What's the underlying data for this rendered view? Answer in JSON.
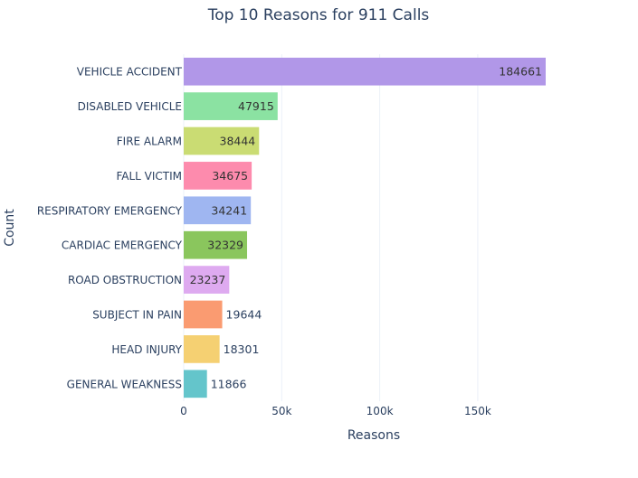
{
  "chart_data": {
    "type": "bar",
    "orientation": "horizontal",
    "title": "Top 10 Reasons for 911 Calls",
    "xlabel": "Reasons",
    "ylabel": "Count",
    "categories": [
      "VEHICLE ACCIDENT",
      "DISABLED VEHICLE",
      "FIRE ALARM",
      "FALL VICTIM",
      "RESPIRATORY EMERGENCY",
      "CARDIAC EMERGENCY",
      "ROAD OBSTRUCTION",
      "SUBJECT IN PAIN",
      "HEAD INJURY",
      "GENERAL WEAKNESS"
    ],
    "values": [
      184661,
      47915,
      38444,
      34675,
      34241,
      32329,
      23237,
      19644,
      18301,
      11866
    ],
    "data_labels": [
      "184661",
      "47915",
      "38444",
      "34675",
      "34241",
      "32329",
      "23237",
      "19644",
      "18301",
      "11866"
    ],
    "colors": [
      "#b197e8",
      "#8be2a2",
      "#cadc73",
      "#fd8bad",
      "#9fb6f1",
      "#8ac65d",
      "#deaaf0",
      "#fa9b71",
      "#f5d072",
      "#64c5cb"
    ],
    "xlim": [
      0,
      184661
    ],
    "xticks": [
      0,
      50000,
      100000,
      150000
    ],
    "xtick_labels": [
      "0",
      "50k",
      "100k",
      "150k"
    ],
    "grid": true,
    "legend": "none"
  }
}
